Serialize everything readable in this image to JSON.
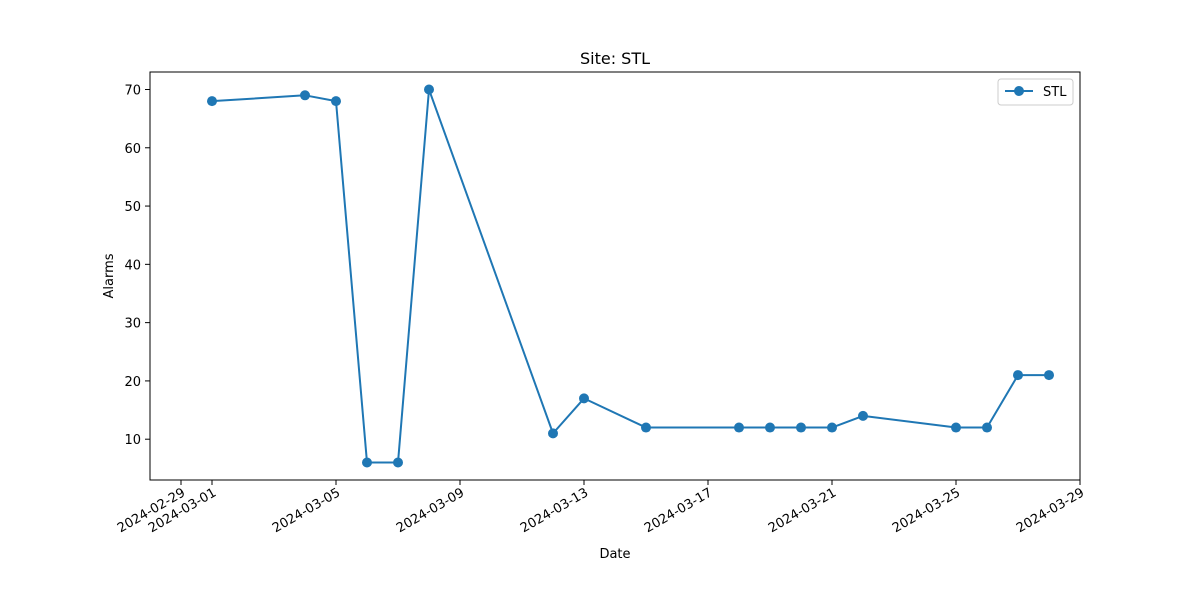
{
  "chart_data": {
    "type": "line",
    "title": "Site: STL",
    "xlabel": "Date",
    "ylabel": "Alarms",
    "x_axis": "date",
    "xlim": [
      "2024-02-28",
      "2024-03-29"
    ],
    "ylim": [
      3,
      73
    ],
    "x_ticks": [
      "2024-02-29",
      "2024-03-01",
      "2024-03-05",
      "2024-03-09",
      "2024-03-13",
      "2024-03-17",
      "2024-03-21",
      "2024-03-25",
      "2024-03-29"
    ],
    "y_ticks": [
      "10",
      "20",
      "30",
      "40",
      "50",
      "60",
      "70"
    ],
    "grid": false,
    "legend": "top-right",
    "series": [
      {
        "name": "STL",
        "color": "#1f77b4",
        "marker": "circle",
        "x": [
          "2024-03-01",
          "2024-03-04",
          "2024-03-05",
          "2024-03-06",
          "2024-03-07",
          "2024-03-08",
          "2024-03-12",
          "2024-03-13",
          "2024-03-15",
          "2024-03-18",
          "2024-03-19",
          "2024-03-20",
          "2024-03-21",
          "2024-03-22",
          "2024-03-25",
          "2024-03-26",
          "2024-03-27",
          "2024-03-28"
        ],
        "y": [
          68,
          69,
          68,
          6,
          6,
          70,
          11,
          17,
          12,
          12,
          12,
          12,
          12,
          14,
          12,
          12,
          21,
          21
        ]
      }
    ]
  }
}
